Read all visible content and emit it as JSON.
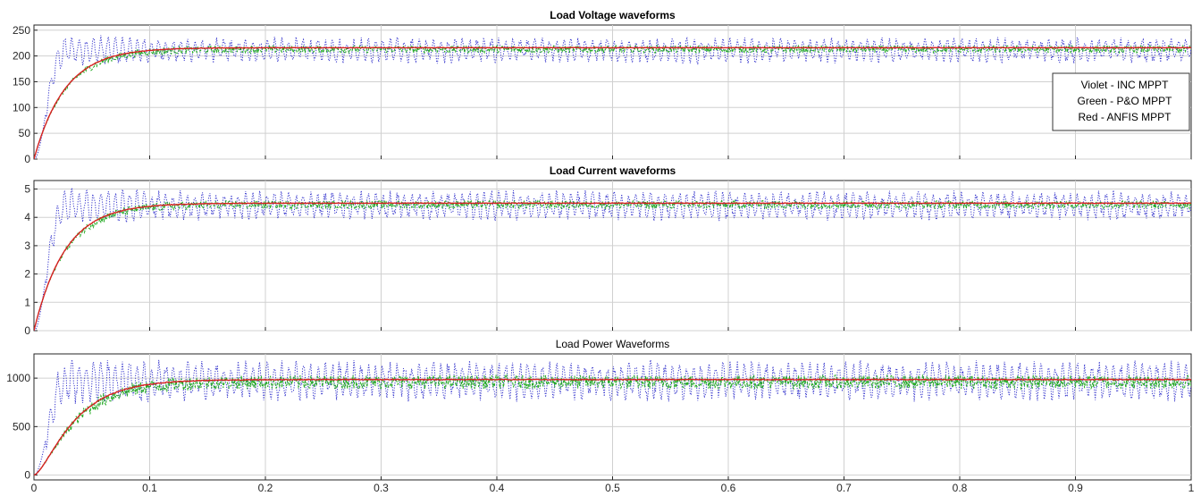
{
  "chart_data": [
    {
      "type": "line",
      "title": "Load Voltage waveforms",
      "title_weight": "bold",
      "xlim": [
        0,
        1
      ],
      "ylim": [
        0,
        260
      ],
      "x_ticks": [
        0,
        0.1,
        0.2,
        0.3,
        0.4,
        0.5,
        0.6,
        0.7,
        0.8,
        0.9,
        1
      ],
      "y_ticks": [
        0,
        50,
        100,
        150,
        200,
        250
      ],
      "y_tick_labels": [
        "0",
        "50",
        "100",
        "150",
        "200",
        "250"
      ],
      "grid": true,
      "series": [
        {
          "name": "Violet - INC MPPT",
          "color": "#3333cc",
          "style": "dotted",
          "steady": 215,
          "ripple": 18,
          "rise_time": 0.028
        },
        {
          "name": "Green - P&O MPPT",
          "color": "#22aa22",
          "style": "dashed",
          "steady": 213,
          "ripple": 7,
          "rise_time": 0.07
        },
        {
          "name": "Red - ANFIS MPPT",
          "color": "#d62020",
          "style": "solid",
          "steady": 216,
          "ripple": 0.5,
          "rise_time": 0.07
        }
      ],
      "legend": {
        "position": "right",
        "entries": [
          "Violet - INC MPPT",
          "Green - P&O MPPT",
          "Red - ANFIS MPPT"
        ]
      }
    },
    {
      "type": "line",
      "title": "Load Current waveforms",
      "title_weight": "bold",
      "xlim": [
        0,
        1
      ],
      "ylim": [
        0,
        5.3
      ],
      "x_ticks": [
        0,
        0.1,
        0.2,
        0.3,
        0.4,
        0.5,
        0.6,
        0.7,
        0.8,
        0.9,
        1
      ],
      "y_ticks": [
        0,
        1,
        2,
        3,
        4,
        5
      ],
      "y_tick_labels": [
        "0",
        "1",
        "2",
        "3",
        "4",
        "5"
      ],
      "grid": true,
      "series": [
        {
          "name": "Violet - INC MPPT",
          "color": "#3333cc",
          "style": "dotted",
          "steady": 4.5,
          "ripple": 0.38,
          "rise_time": 0.028
        },
        {
          "name": "Green - P&O MPPT",
          "color": "#22aa22",
          "style": "dashed",
          "steady": 4.45,
          "ripple": 0.14,
          "rise_time": 0.07
        },
        {
          "name": "Red - ANFIS MPPT",
          "color": "#d62020",
          "style": "solid",
          "steady": 4.5,
          "ripple": 0.01,
          "rise_time": 0.07
        }
      ]
    },
    {
      "type": "line",
      "title": "Load Power Waveforms",
      "title_weight": "normal",
      "xlim": [
        0,
        1
      ],
      "ylim": [
        -50,
        1250
      ],
      "x_ticks": [
        0,
        0.1,
        0.2,
        0.3,
        0.4,
        0.5,
        0.6,
        0.7,
        0.8,
        0.9,
        1
      ],
      "x_tick_labels": [
        "0",
        "0.1",
        "0.2",
        "0.3",
        "0.4",
        "0.5",
        "0.6",
        "0.7",
        "0.8",
        "0.9",
        "1"
      ],
      "y_ticks": [
        0,
        500,
        1000
      ],
      "y_tick_labels": [
        "0",
        "500",
        "1000"
      ],
      "grid": true,
      "series": [
        {
          "name": "Violet - INC MPPT",
          "color": "#3333cc",
          "style": "dotted",
          "steady": 990,
          "ripple": 150,
          "rise_time": 0.03
        },
        {
          "name": "Green - P&O MPPT",
          "color": "#22aa22",
          "style": "dashed",
          "steady": 960,
          "ripple": 70,
          "rise_time": 0.075
        },
        {
          "name": "Red - ANFIS MPPT",
          "color": "#d62020",
          "style": "solid",
          "steady": 985,
          "ripple": 4,
          "rise_time": 0.075
        }
      ]
    }
  ]
}
